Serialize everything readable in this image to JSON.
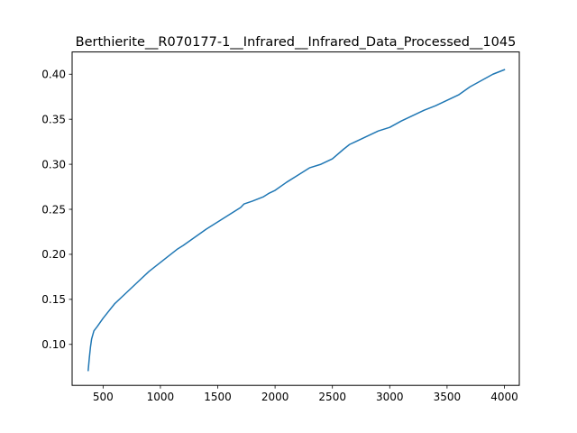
{
  "chart_data": {
    "type": "line",
    "title": "Berthierite__R070177-1__Infrared__Infrared_Data_Processed__1045",
    "xlabel": "",
    "ylabel": "",
    "xlim": [
      230,
      4130
    ],
    "ylim": [
      0.0545,
      0.4247
    ],
    "xticks": [
      500,
      1000,
      1500,
      2000,
      2500,
      3000,
      3500,
      4000
    ],
    "xtick_labels": [
      "500",
      "1000",
      "1500",
      "2000",
      "2500",
      "3000",
      "3500",
      "4000"
    ],
    "yticks": [
      0.1,
      0.15,
      0.2,
      0.25,
      0.3,
      0.35,
      0.4
    ],
    "ytick_labels": [
      "0.10",
      "0.15",
      "0.20",
      "0.25",
      "0.30",
      "0.35",
      "0.40"
    ],
    "grid": false,
    "legend": "none",
    "series": [
      {
        "color": "#1f77b4",
        "x": [
          370,
          380,
          390,
          400,
          420,
          450,
          500,
          550,
          600,
          700,
          800,
          900,
          1000,
          1100,
          1150,
          1200,
          1300,
          1400,
          1500,
          1600,
          1700,
          1730,
          1800,
          1900,
          1950,
          2000,
          2100,
          2200,
          2300,
          2400,
          2500,
          2600,
          2650,
          2700,
          2800,
          2900,
          2950,
          3000,
          3100,
          3200,
          3300,
          3400,
          3500,
          3600,
          3700,
          3800,
          3900,
          4000
        ],
        "y": [
          0.071,
          0.085,
          0.097,
          0.106,
          0.115,
          0.12,
          0.129,
          0.137,
          0.145,
          0.157,
          0.169,
          0.181,
          0.191,
          0.201,
          0.206,
          0.21,
          0.219,
          0.228,
          0.236,
          0.244,
          0.252,
          0.256,
          0.259,
          0.264,
          0.268,
          0.271,
          0.28,
          0.288,
          0.296,
          0.3,
          0.306,
          0.317,
          0.322,
          0.325,
          0.331,
          0.337,
          0.339,
          0.341,
          0.348,
          0.354,
          0.36,
          0.365,
          0.371,
          0.377,
          0.386,
          0.393,
          0.4,
          0.405
        ]
      }
    ]
  }
}
